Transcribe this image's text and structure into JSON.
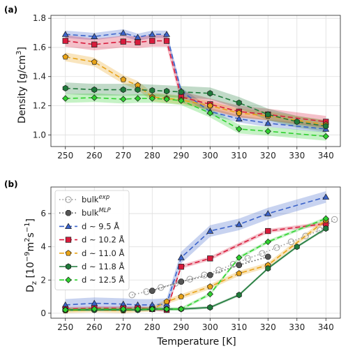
{
  "chart_data": [
    {
      "panel_label": "(a)",
      "type": "line",
      "xlabel": "",
      "ylabel_main": "Density [g/cm",
      "ylabel_sup": "3",
      "ylabel_end": "]",
      "xlim": [
        245,
        345
      ],
      "ylim": [
        0.92,
        1.82
      ],
      "xticks": [
        250,
        260,
        270,
        280,
        290,
        300,
        310,
        320,
        330,
        340
      ],
      "yticks": [
        1.0,
        1.2,
        1.4,
        1.6,
        1.8
      ],
      "ytick_labels": [
        "1.0",
        "1.2",
        "1.4",
        "1.6",
        "1.8"
      ],
      "grid": true,
      "series": [
        {
          "color": "#3a62c9",
          "marker": "triangle",
          "x": [
            250,
            260,
            270,
            275,
            280,
            285,
            290,
            300,
            310,
            320,
            340
          ],
          "y": [
            1.69,
            1.675,
            1.7,
            1.67,
            1.69,
            1.69,
            1.3,
            1.16,
            1.11,
            1.08,
            1.04
          ],
          "band": 0.025
        },
        {
          "color": "#d81b3c",
          "marker": "square",
          "x": [
            250,
            260,
            270,
            275,
            280,
            285,
            290,
            300,
            310,
            320,
            340
          ],
          "y": [
            1.645,
            1.62,
            1.64,
            1.635,
            1.645,
            1.645,
            1.26,
            1.21,
            1.16,
            1.14,
            1.09
          ],
          "band": 0.04
        },
        {
          "color": "#e8a317",
          "marker": "pentagon",
          "x": [
            250,
            260,
            270,
            275,
            280,
            285,
            290,
            300,
            310,
            320,
            340
          ],
          "y": [
            1.535,
            1.5,
            1.38,
            1.34,
            1.26,
            1.25,
            1.24,
            1.2,
            1.15,
            1.13,
            1.07
          ],
          "band": 0.03
        },
        {
          "color": "#1f7a3a",
          "marker": "hexagon",
          "x": [
            250,
            260,
            270,
            275,
            280,
            285,
            290,
            300,
            310,
            320,
            330,
            340
          ],
          "y": [
            1.32,
            1.31,
            1.31,
            1.31,
            1.305,
            1.3,
            1.295,
            1.285,
            1.22,
            1.14,
            1.09,
            1.06
          ],
          "band": 0.04
        },
        {
          "color": "#2ed12e",
          "marker": "diamond",
          "x": [
            250,
            260,
            270,
            275,
            280,
            285,
            290,
            300,
            310,
            320,
            340
          ],
          "y": [
            1.25,
            1.255,
            1.245,
            1.25,
            1.25,
            1.245,
            1.235,
            1.15,
            1.04,
            1.025,
            0.99
          ],
          "band": 0.03
        }
      ]
    },
    {
      "panel_label": "(b)",
      "type": "line",
      "xlabel": "Temperature [K]",
      "ylabel_main": "D",
      "ylabel_sub": "z",
      "ylabel_rest": " [10",
      "ylabel_sup1": "−9",
      "ylabel_mid": "m",
      "ylabel_sup2": "2",
      "ylabel_mid2": "s",
      "ylabel_sup3": "−1",
      "ylabel_end": "]",
      "xlim": [
        245,
        345
      ],
      "ylim": [
        -0.3,
        7.6
      ],
      "xticks": [
        250,
        260,
        270,
        280,
        290,
        300,
        310,
        320,
        330,
        340
      ],
      "yticks": [
        0,
        2,
        4,
        6
      ],
      "ytick_labels": [
        "0",
        "2",
        "4",
        "6"
      ],
      "grid": true,
      "legend_placement": "upper-left",
      "series": [
        {
          "name": "bulk",
          "name_sup": "exp",
          "color": "#999999",
          "marker": "circle-open",
          "dash": "1.5,3",
          "x": [
            273,
            278,
            283,
            288,
            293,
            298,
            303,
            308,
            313,
            318,
            323,
            328,
            333,
            338,
            343
          ],
          "y": [
            1.1,
            1.3,
            1.55,
            1.8,
            2.05,
            2.3,
            2.6,
            2.95,
            3.3,
            3.6,
            3.95,
            4.3,
            4.65,
            5.0,
            5.65
          ],
          "band": 0
        },
        {
          "name": "bulk",
          "name_sup": "MLP",
          "color": "#555555",
          "marker": "octagon",
          "dash": "1.5,3",
          "x": [
            280,
            290,
            300,
            310,
            320
          ],
          "y": [
            1.35,
            1.9,
            2.3,
            2.9,
            3.4
          ],
          "band": 0
        },
        {
          "name": "d ~ 9.5 Å",
          "name_sup": "",
          "color": "#3a62c9",
          "marker": "triangle",
          "dash": "7,4",
          "x": [
            250,
            260,
            270,
            275,
            280,
            285,
            290,
            300,
            310,
            320,
            340
          ],
          "y": [
            0.5,
            0.6,
            0.55,
            0.5,
            0.5,
            0.55,
            3.35,
            4.95,
            5.35,
            6.0,
            7.0
          ],
          "band": 0.35
        },
        {
          "name": "d ~ 10.2 Å",
          "name_sup": "",
          "color": "#d81b3c",
          "marker": "square",
          "dash": "7,4",
          "x": [
            250,
            260,
            270,
            275,
            280,
            285,
            290,
            300,
            320,
            340
          ],
          "y": [
            0.25,
            0.3,
            0.3,
            0.3,
            0.25,
            0.2,
            2.8,
            3.3,
            4.95,
            5.4
          ],
          "band": 0.12
        },
        {
          "name": "d ~ 11.0 Å",
          "name_sup": "",
          "color": "#e8a317",
          "marker": "pentagon",
          "dash": "7,4",
          "x": [
            250,
            260,
            270,
            275,
            280,
            285,
            290,
            300,
            310,
            320,
            340
          ],
          "y": [
            0.15,
            0.2,
            0.15,
            0.2,
            0.25,
            0.7,
            1.0,
            1.6,
            2.4,
            2.9,
            5.6
          ],
          "band": 0.15
        },
        {
          "name": "d ~ 11.8 Å",
          "name_sup": "",
          "color": "#1f7a3a",
          "marker": "hexagon",
          "dash": "",
          "x": [
            250,
            260,
            270,
            275,
            280,
            285,
            290,
            300,
            310,
            320,
            330,
            340
          ],
          "y": [
            0.2,
            0.2,
            0.2,
            0.2,
            0.25,
            0.25,
            0.25,
            0.35,
            1.1,
            2.7,
            4.0,
            5.1
          ],
          "band": 0.08
        },
        {
          "name": "d ~ 12.5 Å",
          "name_sup": "",
          "color": "#2ed12e",
          "marker": "diamond",
          "dash": "7,4",
          "x": [
            250,
            260,
            270,
            275,
            280,
            285,
            290,
            300,
            310,
            320,
            340
          ],
          "y": [
            0.2,
            0.25,
            0.25,
            0.25,
            0.25,
            0.25,
            0.25,
            1.15,
            3.35,
            4.3,
            5.7
          ],
          "band": 0.1
        }
      ]
    }
  ]
}
